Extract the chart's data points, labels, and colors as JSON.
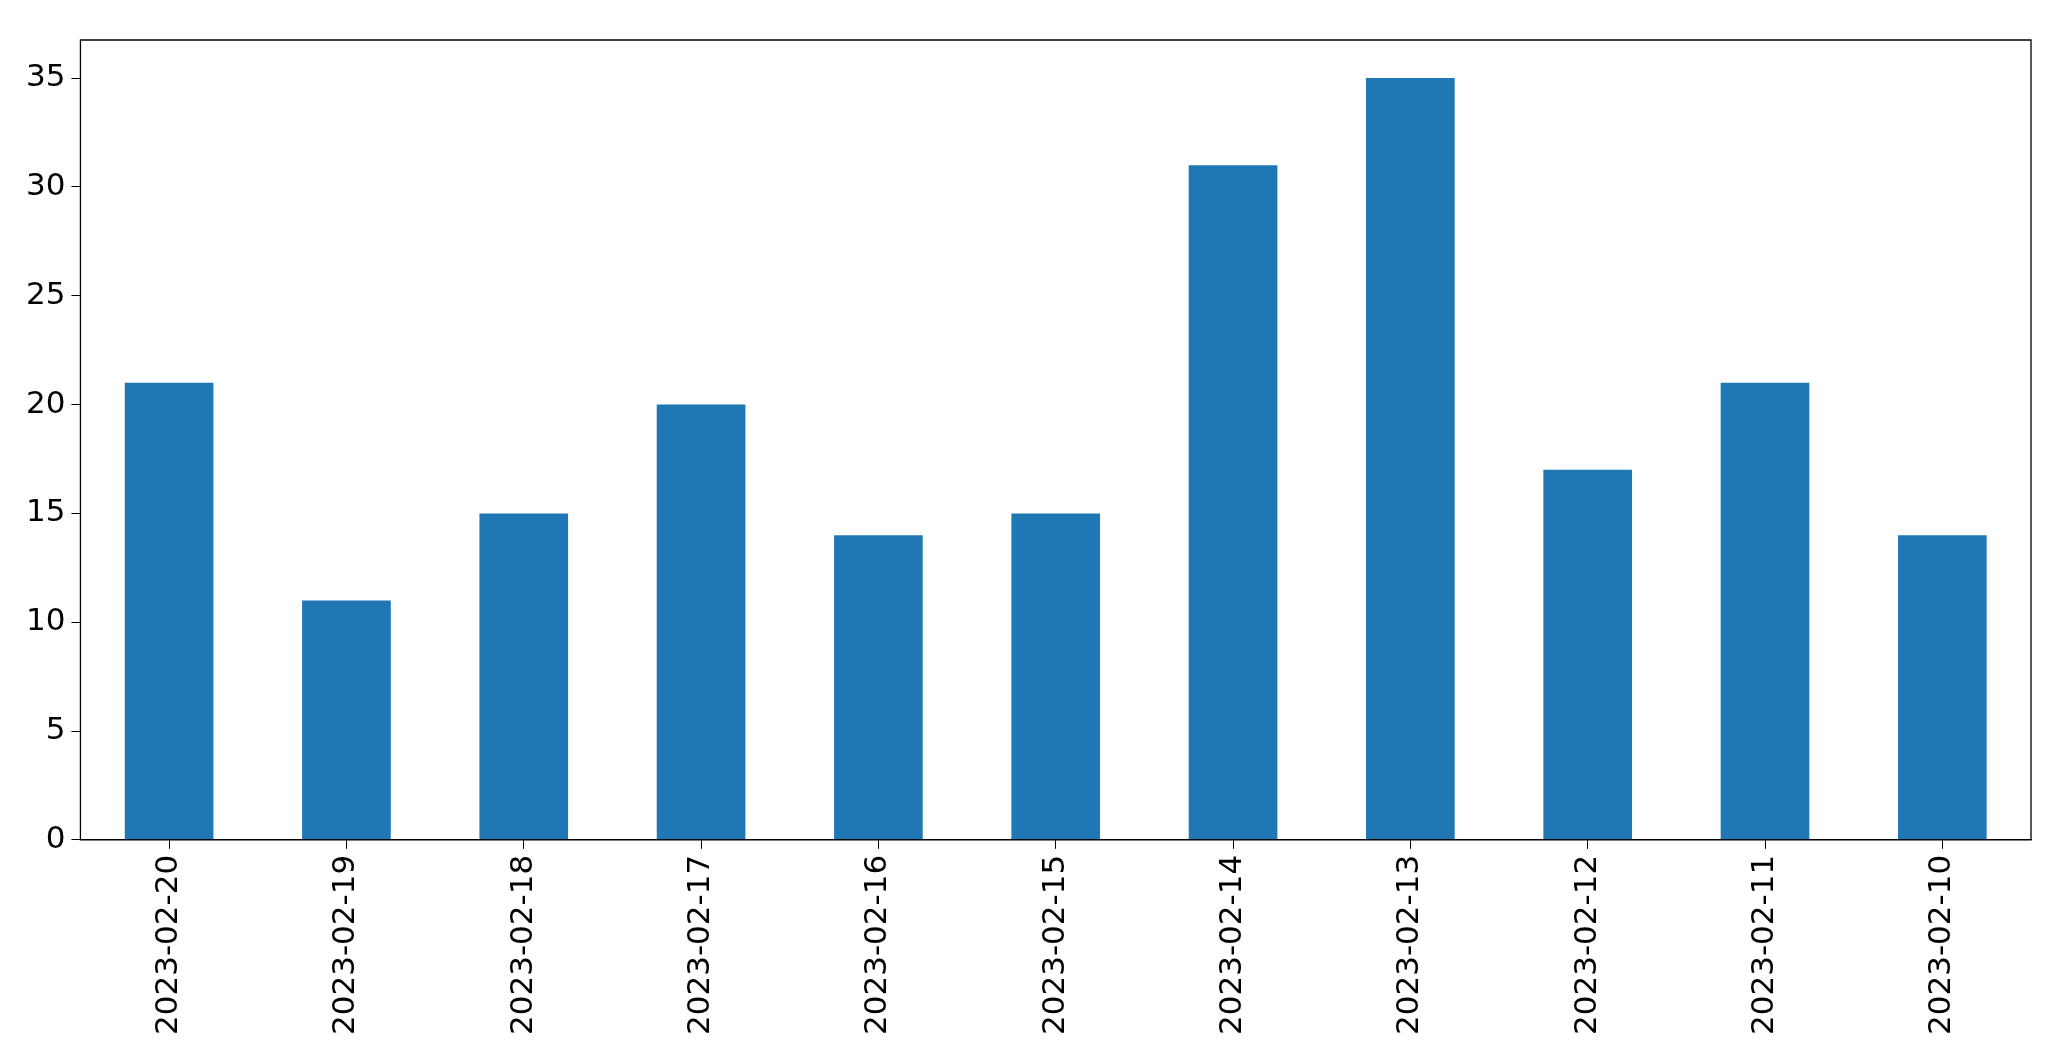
{
  "chart_data": {
    "type": "bar",
    "categories": [
      "2023-02-20",
      "2023-02-19",
      "2023-02-18",
      "2023-02-17",
      "2023-02-16",
      "2023-02-15",
      "2023-02-14",
      "2023-02-13",
      "2023-02-12",
      "2023-02-11",
      "2023-02-10"
    ],
    "values": [
      21,
      11,
      15,
      20,
      14,
      15,
      31,
      35,
      17,
      21,
      14
    ],
    "color": "#1f77b4",
    "ylim": [
      0,
      36.75
    ],
    "yticks": [
      0,
      5,
      10,
      15,
      20,
      25,
      30,
      35
    ],
    "grid": false,
    "legend": false
  }
}
